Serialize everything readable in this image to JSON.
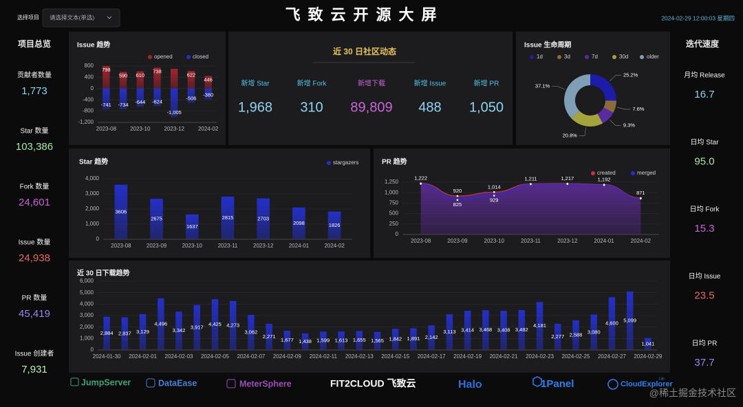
{
  "header": {
    "project_label": "选择项目",
    "select_placeholder": "请选择文本(单选)",
    "title": "飞致云开源大屏",
    "datetime": "2024-02-29  12:00:03  星期四"
  },
  "summary": {
    "title": "项目总览",
    "items": [
      {
        "label": "贡献者数量",
        "value": "1,773",
        "color": "#8fd3f0"
      },
      {
        "label": "Star 数量",
        "value": "103,386",
        "color": "#a6e8a6"
      },
      {
        "label": "Fork 数量",
        "value": "24,601",
        "color": "#c865d8"
      },
      {
        "label": "Issue 数量",
        "value": "24,938",
        "color": "#e8675f"
      },
      {
        "label": "PR 数量",
        "value": "45,419",
        "color": "#9a86ee"
      },
      {
        "label": "Issue 创建者",
        "value": "7,931",
        "color": "#bdeebd"
      }
    ]
  },
  "speed": {
    "title": "迭代速度",
    "items": [
      {
        "label": "月均 Release",
        "value": "16.7",
        "color": "#8fd3f0"
      },
      {
        "label": "日均 Star",
        "value": "95.0",
        "color": "#a6e8a6"
      },
      {
        "label": "日均 Fork",
        "value": "15.3",
        "color": "#c865d8"
      },
      {
        "label": "日均 Issue",
        "value": "23.5",
        "color": "#e8675f"
      },
      {
        "label": "日均 PR",
        "value": "37.7",
        "color": "#9a86ee"
      }
    ]
  },
  "community": {
    "title": "近 30 日社区动态",
    "items": [
      {
        "label": "新增 Star",
        "value": "1,968",
        "color": "#8fd3f0",
        "label_color": "#4fc3e6"
      },
      {
        "label": "新增 Fork",
        "value": "310",
        "color": "#8fd3f0",
        "label_color": "#4fc3e6"
      },
      {
        "label": "新增下载",
        "value": "89,809",
        "color": "#c865d8",
        "label_color": "#c865d8"
      },
      {
        "label": "新增 Issue",
        "value": "488",
        "color": "#8fd3f0",
        "label_color": "#4fc3e6"
      },
      {
        "label": "新增 PR",
        "value": "1,050",
        "color": "#8fd3f0",
        "label_color": "#4fc3e6"
      }
    ]
  },
  "chart_data": [
    {
      "type": "bar",
      "title": "Issue 趋势",
      "stacked": true,
      "label_position": "outside",
      "grid": true,
      "categories": [
        "2023-08",
        null,
        "2023-10",
        null,
        "2023-12",
        null,
        "2024-02"
      ],
      "series": [
        {
          "name": "opened",
          "color": "#a3232e",
          "values": [
            798,
            590,
            610,
            738,
            700,
            622,
            446
          ],
          "value_labels": [
            "798",
            "590",
            "610",
            "738",
            null,
            "622",
            "446"
          ]
        },
        {
          "name": "closed",
          "color": "#2430c8",
          "values": [
            -741,
            -734,
            -644,
            -624,
            -1005,
            -506,
            -380
          ],
          "value_labels": [
            "-741",
            "-734",
            "-644",
            "-624",
            "-1,005",
            "-506",
            "-380"
          ]
        }
      ],
      "ylim": [
        -1200,
        800
      ],
      "yticks": [
        800,
        400,
        0,
        -400,
        -800,
        {
          "value": -1200,
          "label": "-1,200"
        }
      ]
    },
    {
      "type": "bar",
      "title": "Star 趋势",
      "label_position": "inside",
      "grid": true,
      "categories": [
        "2023-08",
        "2023-09",
        "2023-10",
        "2023-11",
        "2023-12",
        "2024-01",
        "2024-02"
      ],
      "series": [
        {
          "name": "stargazers",
          "color": "#2430c8",
          "values": [
            3606,
            2675,
            1637,
            2815,
            2703,
            2098,
            1826
          ]
        }
      ],
      "ylim": [
        0,
        4000
      ],
      "yticks": [
        0,
        {
          "value": 1000,
          "label": "1,000"
        },
        {
          "value": 2000,
          "label": "2,000"
        },
        {
          "value": 3000,
          "label": "3,000"
        },
        {
          "value": 4000,
          "label": "4,000"
        }
      ]
    },
    {
      "type": "line",
      "title": "PR 趋势",
      "area": true,
      "grid": true,
      "categories": [
        "2023-08",
        "2023-09",
        "2023-10",
        "2023-11",
        "2023-12",
        "2024-01",
        "2024-02"
      ],
      "series": [
        {
          "name": "created",
          "color": "#c4323c",
          "values": [
            1222,
            920,
            1014,
            1211,
            1217,
            1192,
            871
          ],
          "value_labels": [
            "1,222",
            "920",
            "1,014",
            "1,211",
            "1,217",
            "1,192",
            "871"
          ]
        },
        {
          "name": "merged",
          "color": "#2a2ad8",
          "values": [
            1210,
            825,
            929,
            1200,
            1205,
            1180,
            860
          ],
          "value_labels": [
            null,
            "825",
            "929",
            null,
            null,
            null,
            null
          ]
        }
      ],
      "ylim": [
        0,
        1250
      ],
      "yticks": [
        0,
        250,
        500,
        750,
        {
          "value": 1000,
          "label": "1,000"
        },
        {
          "value": 1250,
          "label": "1,250"
        }
      ]
    },
    {
      "type": "pie",
      "title": "Issue 生命周期",
      "categories": [
        "1d",
        "3d",
        "7d",
        "30d",
        "older"
      ],
      "values": [
        25.2,
        7.6,
        9.3,
        20.8,
        37.1
      ],
      "value_labels": [
        "25.2%",
        "7.6%",
        "9.3%",
        "20.8%",
        "37.1%"
      ],
      "colors": [
        "#1c1ca8",
        "#8a6b3c",
        "#5a2aa0",
        "#a4a43c",
        "#809fb6"
      ]
    },
    {
      "type": "bar",
      "title": "近 30 日下载趋势",
      "label_position": "inside",
      "grid": true,
      "categories": [
        "2024-01-30",
        null,
        "2024-02-01",
        null,
        "2024-02-03",
        null,
        "2024-02-05",
        null,
        "2024-02-07",
        null,
        "2024-02-09",
        null,
        "2024-02-11",
        null,
        "2024-02-13",
        null,
        "2024-02-15",
        null,
        "2024-02-17",
        null,
        "2024-02-19",
        null,
        "2024-02-21",
        null,
        "2024-02-23",
        null,
        "2024-02-25",
        null,
        "2024-02-27",
        null,
        "2024-02-29"
      ],
      "series": [
        {
          "color": "#2430c8",
          "values": [
            2884,
            2837,
            3129,
            4496,
            3342,
            3917,
            4425,
            4273,
            3062,
            2271,
            1677,
            1438,
            1599,
            1613,
            1655,
            1565,
            1842,
            1891,
            2142,
            3113,
            3414,
            3468,
            3408,
            3482,
            4181,
            2277,
            2588,
            3080,
            4600,
            5099,
            1041
          ],
          "value_labels": [
            "2,884",
            "2,837",
            "3,129",
            "4,496",
            "3,342",
            "3,917",
            "4,425",
            "4,273",
            "3,062",
            "2,271",
            "1,677",
            "1,438",
            "1,599",
            "1,613",
            "1,655",
            "1,565",
            "1,842",
            "1,891",
            "2,142",
            "3,113",
            "3,414",
            "3,468",
            "3,408",
            "3,482",
            "4,181",
            "2,277",
            "2,588",
            "3,080",
            "4,600",
            "5,099",
            "1,041"
          ]
        }
      ],
      "ylim": [
        0,
        6000
      ],
      "yticks": [
        0,
        {
          "value": 1000,
          "label": "1,000"
        },
        {
          "value": 2000,
          "label": "2,000"
        },
        {
          "value": 3000,
          "label": "3,000"
        },
        {
          "value": 4000,
          "label": "4,000"
        },
        {
          "value": 5000,
          "label": "5,000"
        },
        {
          "value": 6000,
          "label": "6,000"
        }
      ]
    }
  ],
  "footer": {
    "logos": [
      "JumpServer",
      "DataEase",
      "MeterSphere",
      "FIT2CLOUD 飞致云",
      "Halo",
      "1Panel",
      "CloudExplorer",
      "Lite"
    ],
    "watermark": "@稀土掘金技术社区"
  }
}
